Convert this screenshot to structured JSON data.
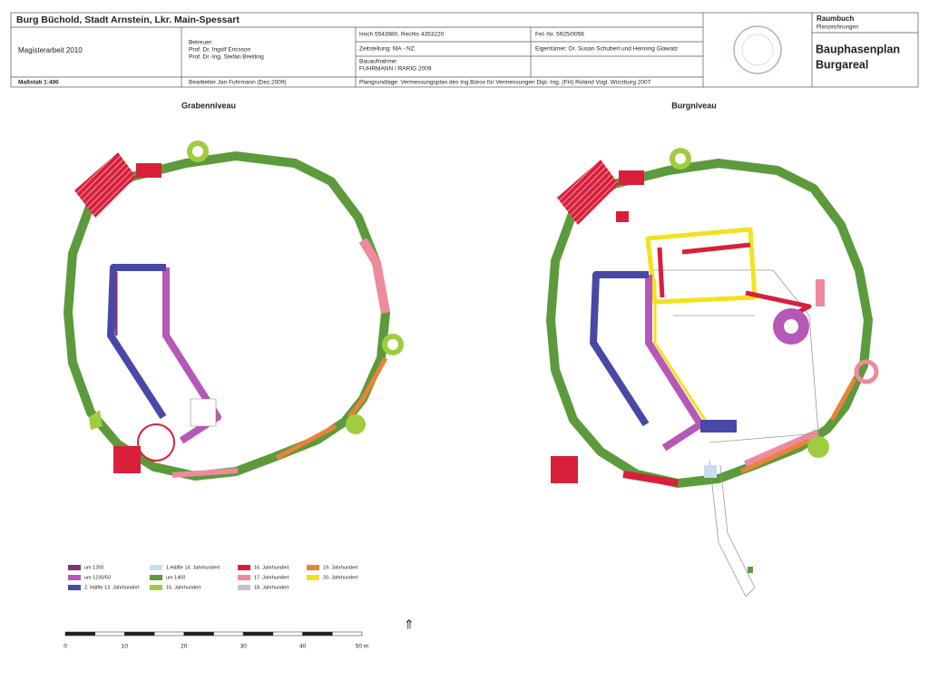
{
  "header": {
    "title": "Burg Büchold, Stadt Arnstein, Lkr. Main-Spessart",
    "thesis": "Magisterarbeit 2010",
    "advisors": [
      "Betreuer:",
      "Prof. Dr. Ingolf Ericsson",
      "Prof. Dr.-Ing. Stefan Breitling"
    ],
    "coordinates": "Hoch 5543680,  Rechts 4353220",
    "period": "Zeitstellung: MA - NZ",
    "survey": [
      "Bauaufnahme:",
      "FUHRMANN / RARIG 2009"
    ],
    "site_number": "Fel.-Nr.  5925/0056",
    "owner": "Eigentümer: Dr. Susan Schubert und Henning Glawatz",
    "scale": "Maßstab  1:400",
    "editor": "Bearbeiter  Jan Fuhrmann (Dez.2009)",
    "base_plan": "Plangrundlage:  Vermessungsplan des Ing.Büros für Vermessungen Dipl.-Ing. (FH) Roland Vogl, Würzburg 2007"
  },
  "sidebar": {
    "category": "Raumbuch",
    "subcategory": "Planzeichnungen",
    "plan_title": [
      "Bauphasenplan",
      "Burgareal"
    ]
  },
  "plans": [
    {
      "label": "Grabenniveau"
    },
    {
      "label": "Burgniveau"
    }
  ],
  "legend": [
    {
      "label": "um 1200",
      "color": "#7a3a70"
    },
    {
      "label": "um 1230/50",
      "color": "#b558b8"
    },
    {
      "label": "2. Hälfte 13. Jahrhundert",
      "color": "#4848a8"
    },
    {
      "label": "1.Hälfte 14. Jahrhundert",
      "color": "#c8def0"
    },
    {
      "label": "um 1400",
      "color": "#5c9a3c"
    },
    {
      "label": "15. Jahrhundert",
      "color": "#a0cc40"
    },
    {
      "label": "16. Jahrhundert",
      "color": "#d8203a"
    },
    {
      "label": "17. Jahrhundert",
      "color": "#ee8a9c"
    },
    {
      "label": "18. Jahrhundert",
      "color": "#c4c4c4"
    },
    {
      "label": "19. Jahrhundert",
      "color": "#e8843a"
    },
    {
      "label": "20. Jahrhundert",
      "color": "#f2e21e"
    }
  ],
  "scale_bar": {
    "labels": [
      "0",
      "10",
      "20",
      "30",
      "40",
      "50 m"
    ]
  }
}
